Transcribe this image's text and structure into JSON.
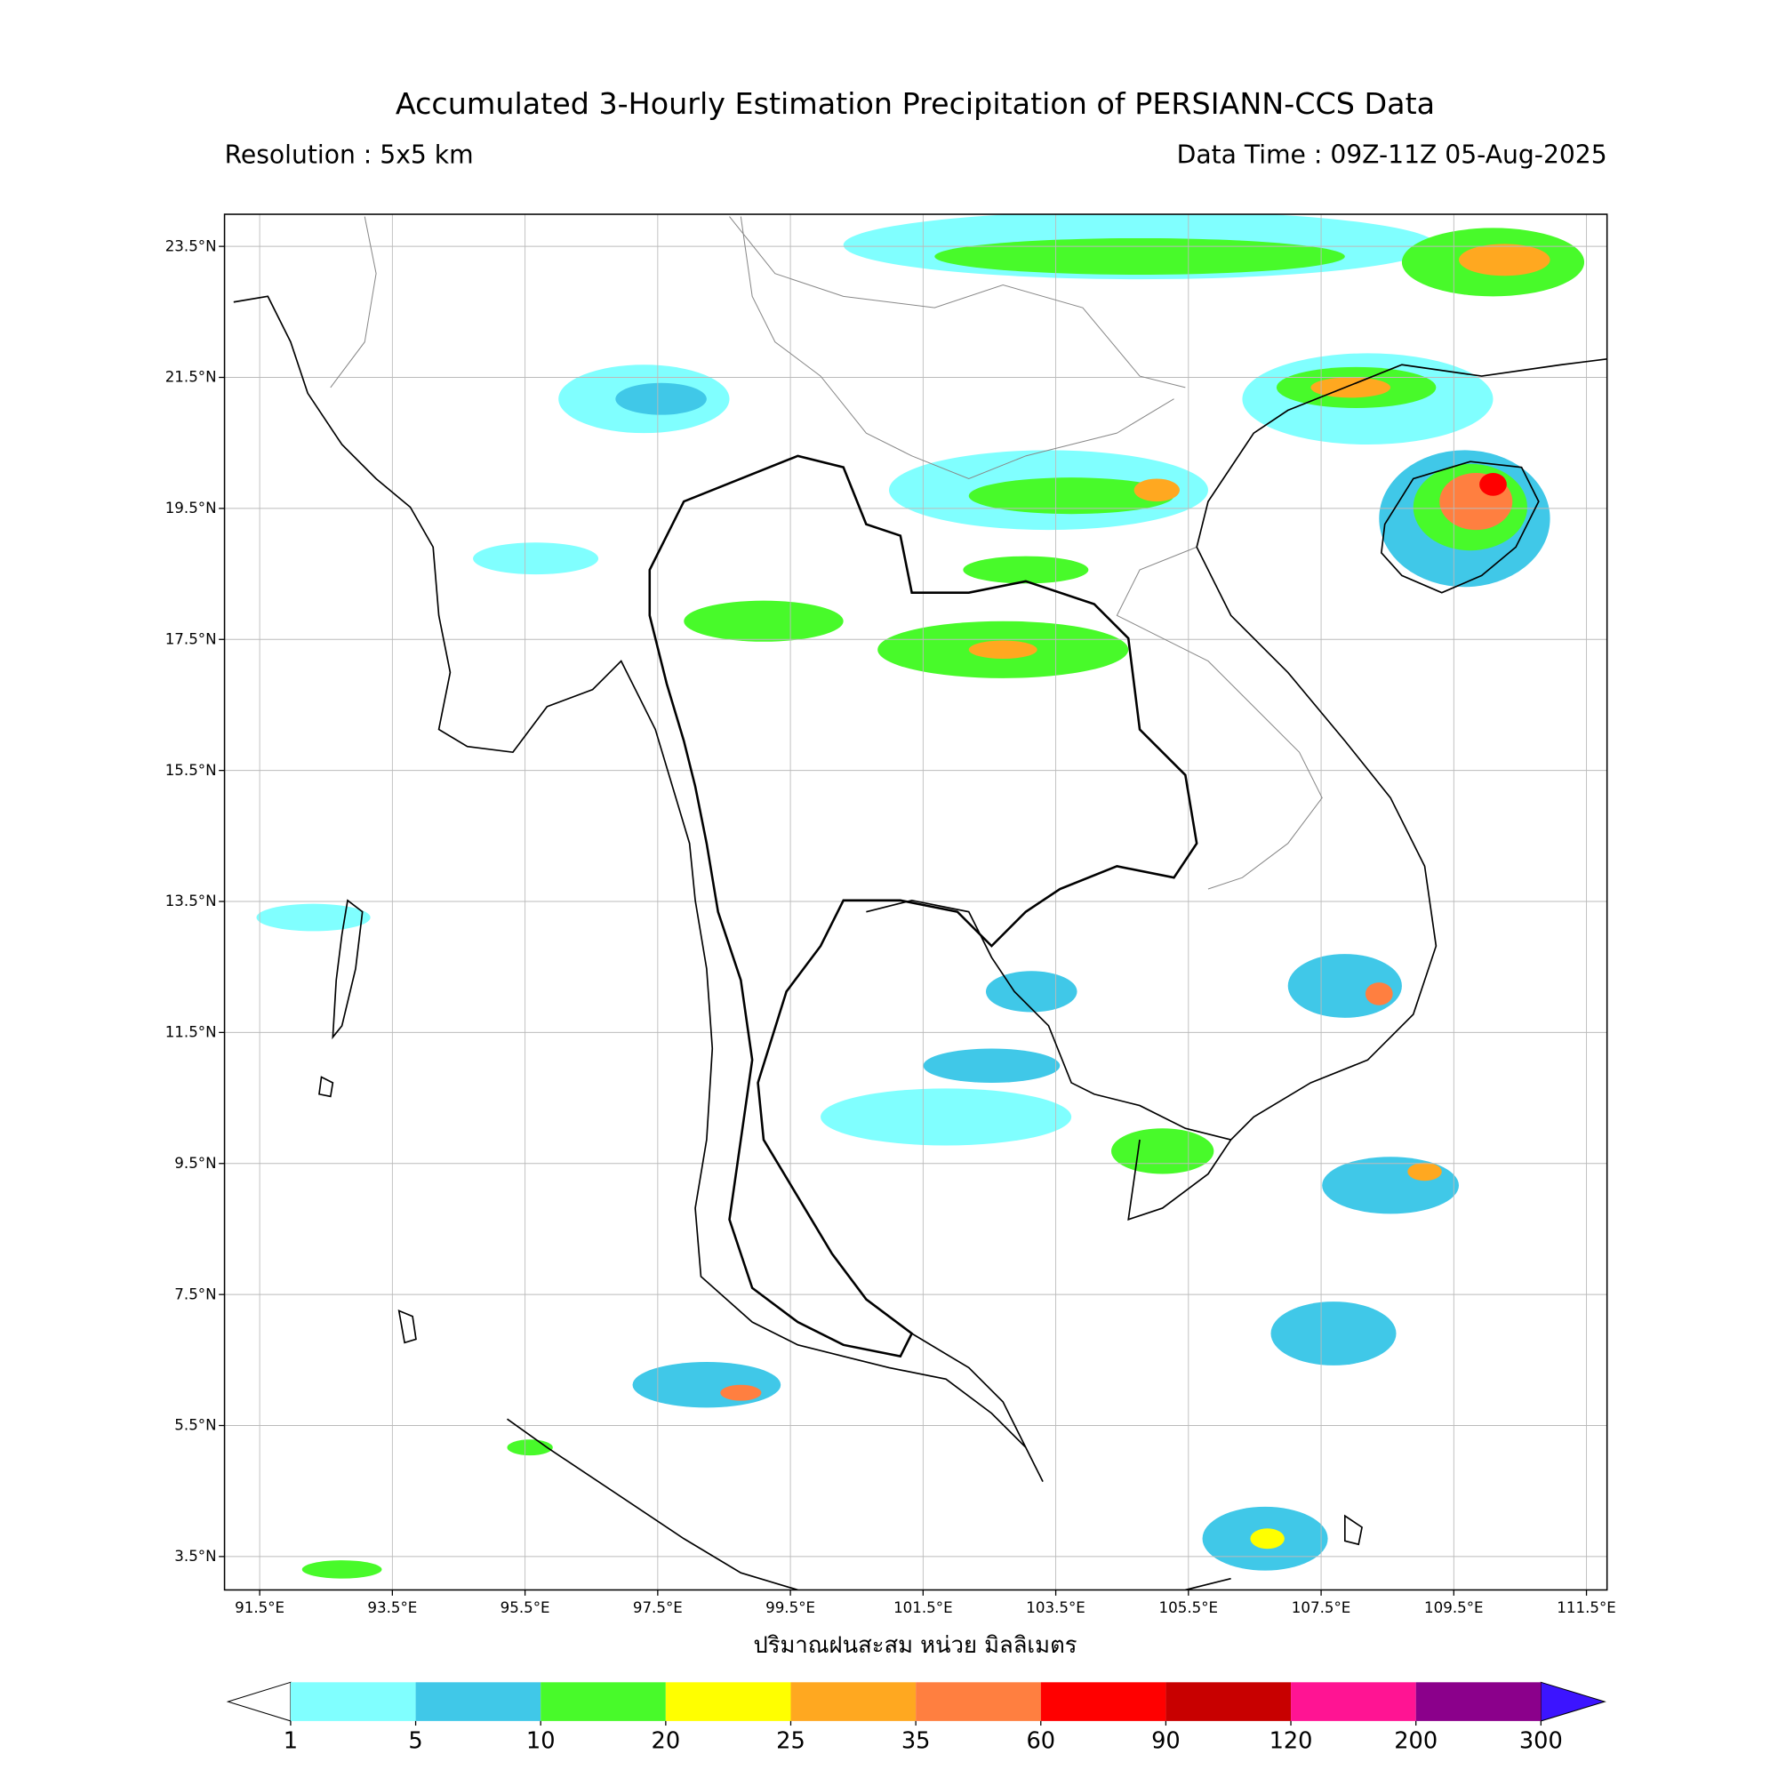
{
  "header": {
    "title": "Accumulated 3-Hourly Estimation Precipitation of PERSIANN-CCS Data",
    "resolution": "Resolution : 5x5 km",
    "data_time": "Data Time : 09Z-11Z 05-Aug-2025"
  },
  "map": {
    "lonlim": [
      90.97,
      111.81
    ],
    "latlim": [
      2.99,
      23.99
    ],
    "grid": true,
    "lonticks": [
      {
        "value": 91.5,
        "label": "91.5°E"
      },
      {
        "value": 93.5,
        "label": "93.5°E"
      },
      {
        "value": 95.5,
        "label": "95.5°E"
      },
      {
        "value": 97.5,
        "label": "97.5°E"
      },
      {
        "value": 99.5,
        "label": "99.5°E"
      },
      {
        "value": 101.5,
        "label": "101.5°E"
      },
      {
        "value": 103.5,
        "label": "103.5°E"
      },
      {
        "value": 105.5,
        "label": "105.5°E"
      },
      {
        "value": 107.5,
        "label": "107.5°E"
      },
      {
        "value": 109.5,
        "label": "109.5°E"
      },
      {
        "value": 111.5,
        "label": "111.5°E"
      }
    ],
    "latticks": [
      {
        "value": 23.5,
        "label": "23.5°N"
      },
      {
        "value": 21.5,
        "label": "21.5°N"
      },
      {
        "value": 19.5,
        "label": "19.5°N"
      },
      {
        "value": 17.5,
        "label": "17.5°N"
      },
      {
        "value": 15.5,
        "label": "15.5°N"
      },
      {
        "value": 13.5,
        "label": "13.5°N"
      },
      {
        "value": 11.5,
        "label": "11.5°N"
      },
      {
        "value": 9.5,
        "label": "9.5°N"
      },
      {
        "value": 7.5,
        "label": "7.5°N"
      },
      {
        "value": 5.5,
        "label": "5.5°N"
      },
      {
        "value": 3.5,
        "label": "3.5°N"
      }
    ],
    "xlabel": "ปริมาณฝนสะสม หน่วย มิลลิเมตร"
  },
  "colorbar": {
    "bounds": [
      1,
      5,
      10,
      20,
      25,
      35,
      60,
      90,
      120,
      200,
      300
    ],
    "colors": [
      "#80ffff",
      "#40c8e8",
      "#48fa2a",
      "#ffff00",
      "#ffa820",
      "#ff7f40",
      "#ff0000",
      "#c80000",
      "#ff1493",
      "#8b008b"
    ],
    "under_color": "#ffffff",
    "over_color": "#3c14ff"
  }
}
